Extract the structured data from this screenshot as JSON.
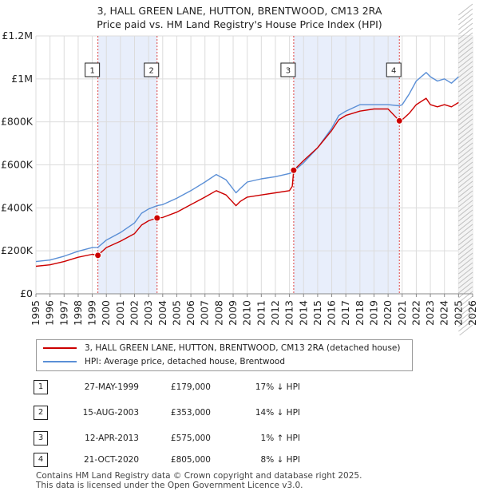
{
  "chart_data": {
    "type": "line",
    "title": "3, HALL GREEN LANE, HUTTON, BRENTWOOD, CM13 2RA",
    "subtitle": "Price paid vs. HM Land Registry's House Price Index (HPI)",
    "xlim": [
      1995,
      2026
    ],
    "ylim": [
      0,
      1200000
    ],
    "x_ticks": [
      "1995",
      "1996",
      "1997",
      "1998",
      "1999",
      "2000",
      "2001",
      "2002",
      "2003",
      "2004",
      "2005",
      "2006",
      "2007",
      "2008",
      "2009",
      "2010",
      "2011",
      "2012",
      "2013",
      "2014",
      "2015",
      "2016",
      "2017",
      "2018",
      "2019",
      "2020",
      "2021",
      "2022",
      "2023",
      "2024",
      "2025",
      "2026"
    ],
    "y_ticks": [
      {
        "value": 0,
        "label": "£0"
      },
      {
        "value": 200000,
        "label": "£200K"
      },
      {
        "value": 400000,
        "label": "£400K"
      },
      {
        "value": 600000,
        "label": "£600K"
      },
      {
        "value": 800000,
        "label": "£800K"
      },
      {
        "value": 1000000,
        "label": "£1M"
      },
      {
        "value": 1200000,
        "label": "£1.2M"
      }
    ],
    "grid": true,
    "forecast_start": 2025.0,
    "shaded_spans": [
      [
        1999.4,
        2003.6
      ],
      [
        2013.3,
        2020.8
      ]
    ],
    "series": [
      {
        "name": "3, HALL GREEN LANE, HUTTON, BRENTWOOD, CM13 2RA (detached house)",
        "color": "#cc0000",
        "x": [
          1995.0,
          1996.0,
          1997.0,
          1998.0,
          1999.0,
          1999.4,
          2000.0,
          2001.0,
          2002.0,
          2002.5,
          2003.0,
          2003.6,
          2004.0,
          2005.0,
          2006.0,
          2007.0,
          2007.8,
          2008.5,
          2009.2,
          2009.5,
          2010.0,
          2011.0,
          2012.0,
          2013.0,
          2013.2,
          2013.3,
          2014.0,
          2015.0,
          2016.0,
          2016.5,
          2017.0,
          2018.0,
          2019.0,
          2020.0,
          2020.8,
          2021.0,
          2021.5,
          2022.0,
          2022.7,
          2023.0,
          2023.5,
          2024.0,
          2024.5,
          2025.0
        ],
        "y": [
          128000,
          135000,
          150000,
          170000,
          184000,
          179000,
          215000,
          245000,
          280000,
          320000,
          340000,
          353000,
          355000,
          380000,
          415000,
          450000,
          480000,
          460000,
          410000,
          430000,
          450000,
          460000,
          470000,
          480000,
          500000,
          575000,
          620000,
          680000,
          760000,
          810000,
          830000,
          850000,
          860000,
          860000,
          805000,
          810000,
          840000,
          880000,
          910000,
          880000,
          870000,
          880000,
          870000,
          890000
        ]
      },
      {
        "name": "HPI: Average price, detached house, Brentwood",
        "color": "#5b8fd6",
        "x": [
          1995.0,
          1996.0,
          1997.0,
          1998.0,
          1999.0,
          1999.4,
          2000.0,
          2001.0,
          2002.0,
          2002.5,
          2003.0,
          2003.6,
          2004.0,
          2005.0,
          2006.0,
          2007.0,
          2007.8,
          2008.5,
          2009.2,
          2009.5,
          2010.0,
          2011.0,
          2012.0,
          2013.0,
          2013.2,
          2013.3,
          2014.0,
          2015.0,
          2016.0,
          2016.5,
          2017.0,
          2018.0,
          2019.0,
          2020.0,
          2020.8,
          2021.0,
          2021.5,
          2022.0,
          2022.7,
          2023.0,
          2023.5,
          2024.0,
          2024.5,
          2025.0
        ],
        "y": [
          150000,
          157000,
          175000,
          198000,
          215000,
          216000,
          250000,
          285000,
          330000,
          375000,
          395000,
          410000,
          415000,
          445000,
          480000,
          520000,
          555000,
          530000,
          470000,
          490000,
          520000,
          535000,
          545000,
          560000,
          565000,
          570000,
          610000,
          680000,
          770000,
          830000,
          850000,
          880000,
          880000,
          880000,
          875000,
          880000,
          930000,
          990000,
          1030000,
          1010000,
          990000,
          1000000,
          980000,
          1010000
        ]
      }
    ],
    "annotations": [
      {
        "label": "1",
        "x": 1999.4,
        "y": 179000
      },
      {
        "label": "2",
        "x": 2003.6,
        "y": 353000
      },
      {
        "label": "3",
        "x": 2013.3,
        "y": 575000
      },
      {
        "label": "4",
        "x": 2020.8,
        "y": 805000
      }
    ]
  },
  "legend": {
    "property": "3, HALL GREEN LANE, HUTTON, BRENTWOOD, CM13 2RA (detached house)",
    "hpi": "HPI: Average price, detached house, Brentwood"
  },
  "events": [
    {
      "num": "1",
      "date": "27-MAY-1999",
      "price": "£179,000",
      "hpi": "17% ↓ HPI"
    },
    {
      "num": "2",
      "date": "15-AUG-2003",
      "price": "£353,000",
      "hpi": "14% ↓ HPI"
    },
    {
      "num": "3",
      "date": "12-APR-2013",
      "price": "£575,000",
      "hpi": "1% ↑ HPI"
    },
    {
      "num": "4",
      "date": "21-OCT-2020",
      "price": "£805,000",
      "hpi": "8% ↓ HPI"
    }
  ],
  "footer": {
    "line1": "Contains HM Land Registry data © Crown copyright and database right 2025.",
    "line2": "This data is licensed under the Open Government Licence v3.0."
  }
}
